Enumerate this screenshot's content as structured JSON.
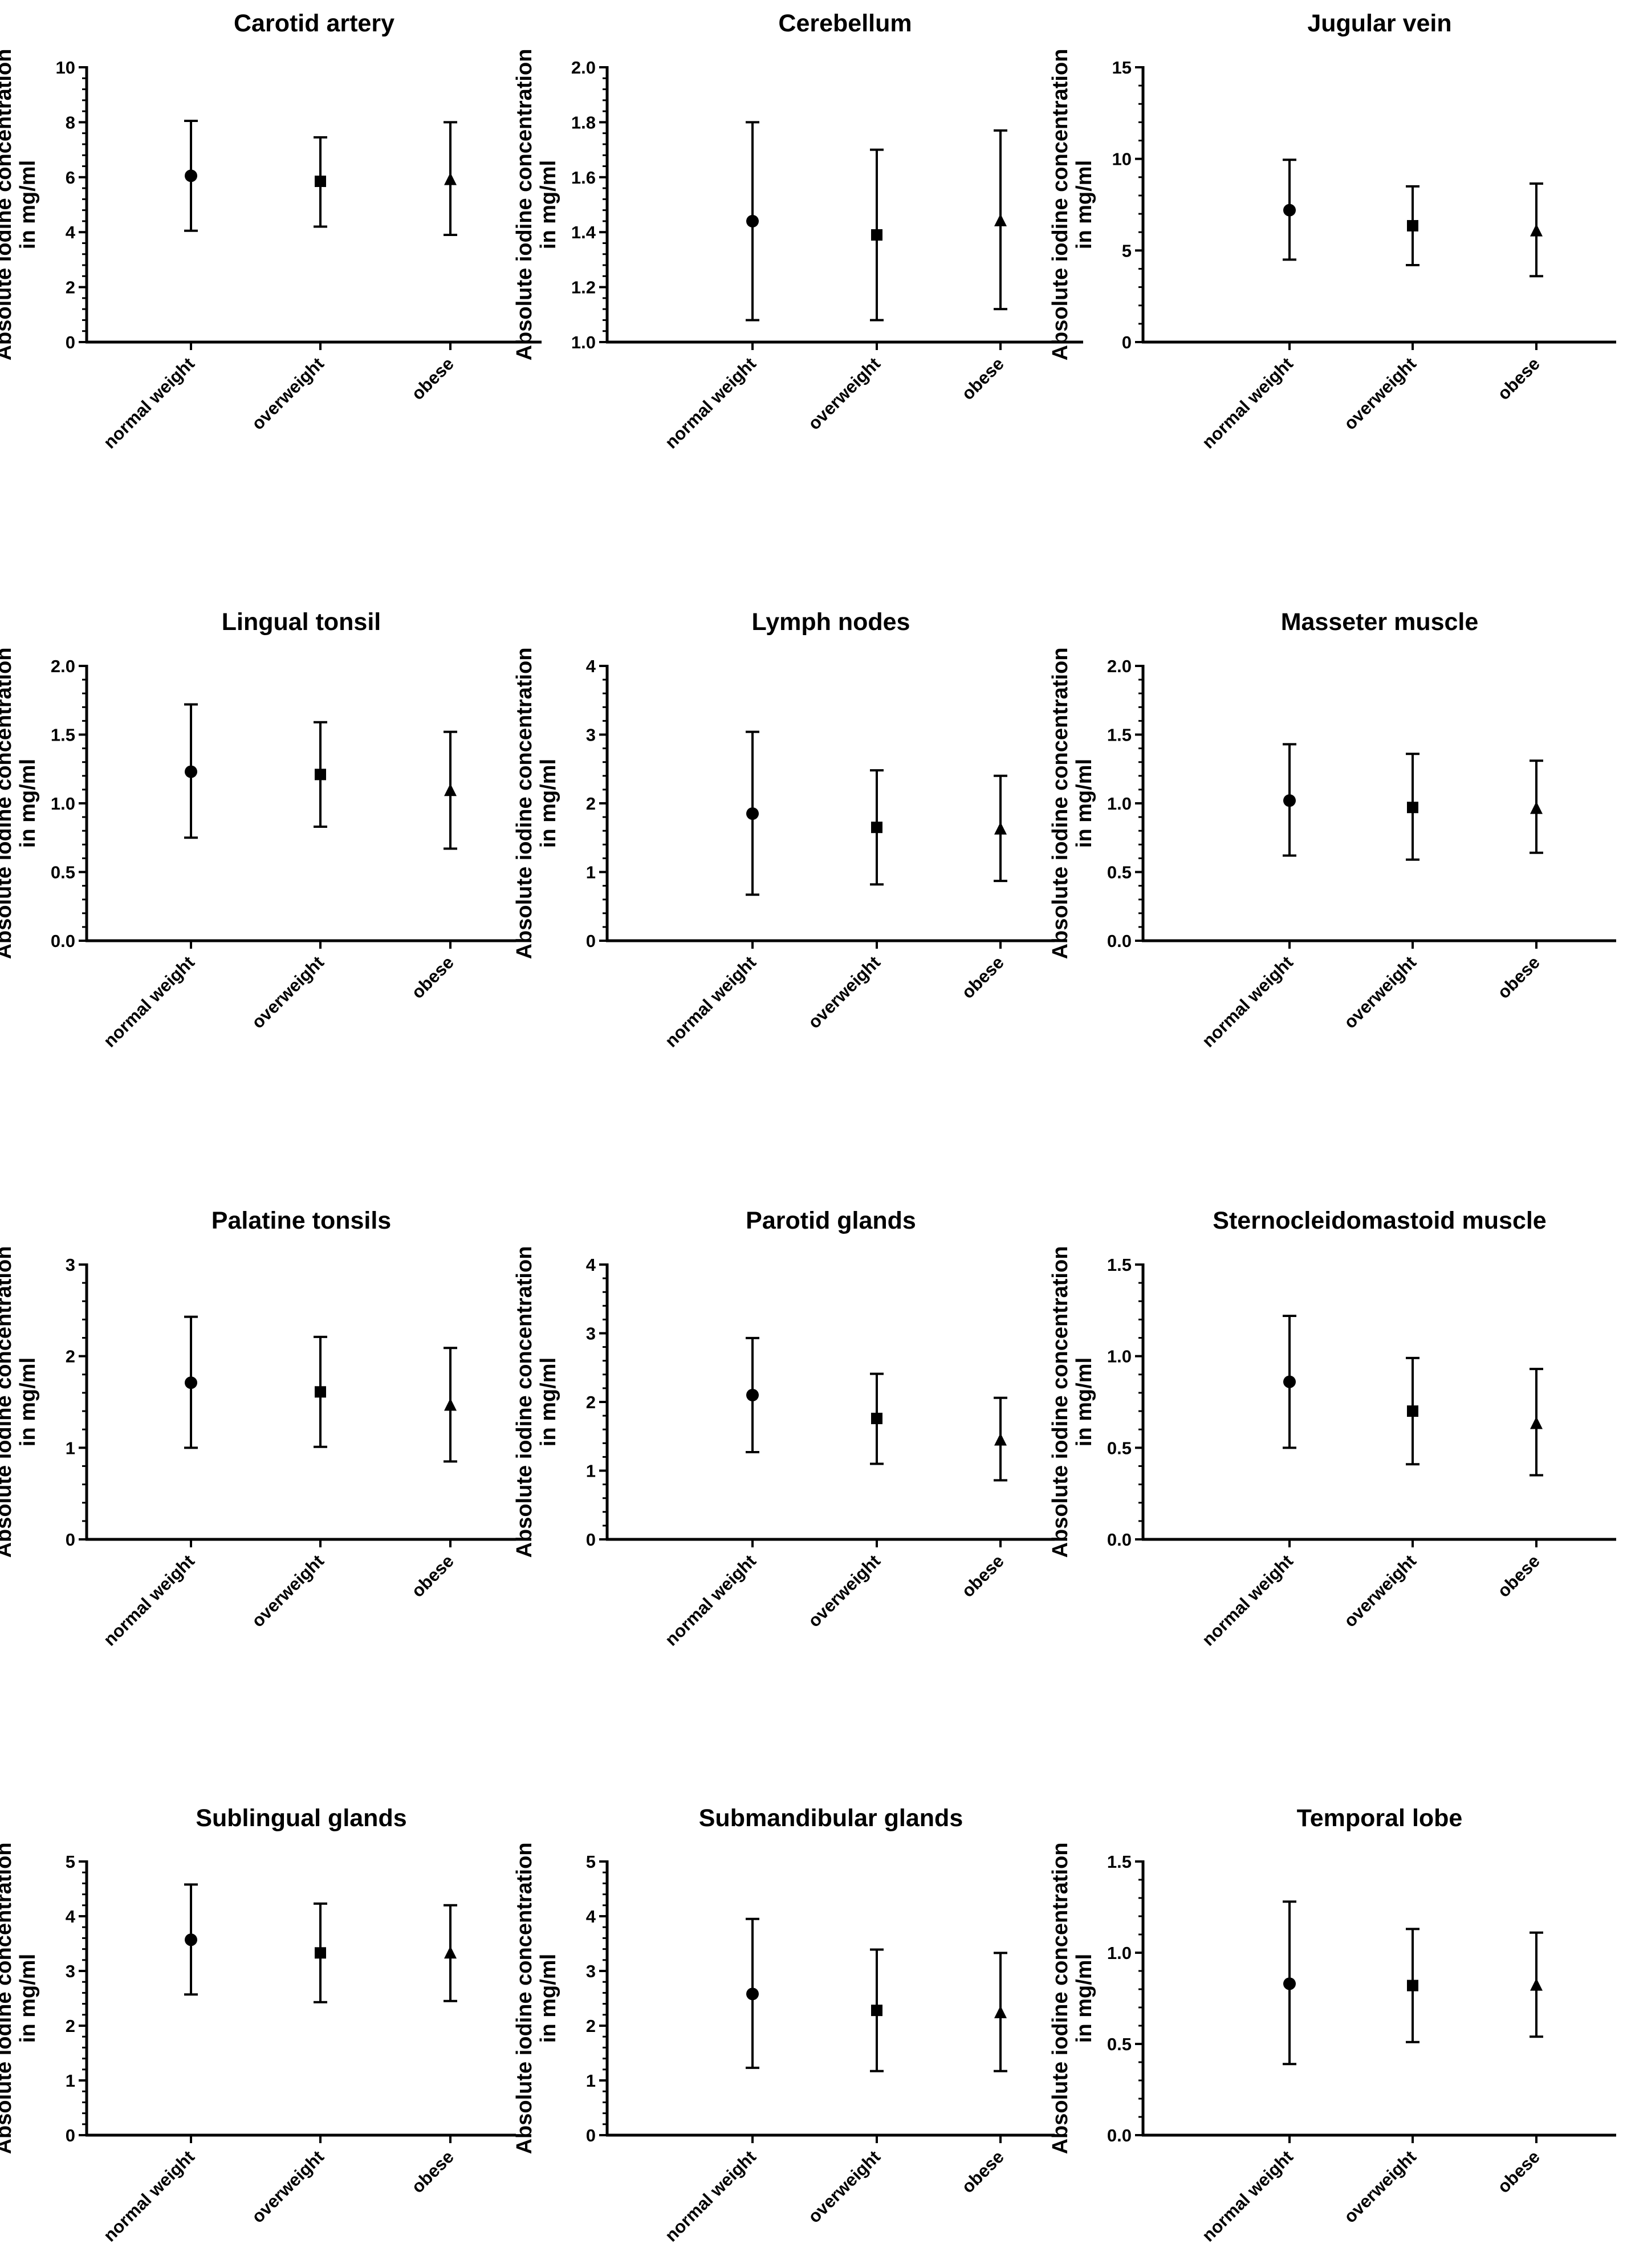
{
  "figure": {
    "ylabel_line1": "Absolute iodine concentration",
    "ylabel_line2": "in mg/ml",
    "categories": [
      "normal weight",
      "overweight",
      "obese"
    ],
    "marker_shapes": [
      "circle",
      "square",
      "triangle"
    ],
    "line_color": "#000000"
  },
  "chart_data": [
    {
      "type": "scatter",
      "title": "Carotid artery",
      "categories": [
        "normal weight",
        "overweight",
        "obese"
      ],
      "means": [
        6.05,
        5.85,
        5.9
      ],
      "lower": [
        4.05,
        4.2,
        3.9
      ],
      "upper": [
        8.05,
        7.45,
        8.0
      ],
      "ylim": [
        0,
        10
      ],
      "ticks": [
        0,
        2,
        4,
        6,
        8,
        10
      ],
      "tick_labels": [
        "0",
        "2",
        "4",
        "6",
        "8",
        "10"
      ],
      "ylabel": "Absolute iodine concentration in mg/ml"
    },
    {
      "type": "scatter",
      "title": "Cerebellum",
      "categories": [
        "normal weight",
        "overweight",
        "obese"
      ],
      "means": [
        1.44,
        1.39,
        1.44
      ],
      "lower": [
        1.08,
        1.08,
        1.12
      ],
      "upper": [
        1.8,
        1.7,
        1.77
      ],
      "ylim": [
        1.0,
        2.0
      ],
      "ticks": [
        1.0,
        1.2,
        1.4,
        1.6,
        1.8,
        2.0
      ],
      "tick_labels": [
        "1.0",
        "1.2",
        "1.4",
        "1.6",
        "1.8",
        "2.0"
      ],
      "ylabel": "Absolute iodine concentration in mg/ml"
    },
    {
      "type": "scatter",
      "title": "Jugular vein",
      "categories": [
        "normal weight",
        "overweight",
        "obese"
      ],
      "means": [
        7.2,
        6.35,
        6.05
      ],
      "lower": [
        4.5,
        4.2,
        3.6
      ],
      "upper": [
        9.95,
        8.5,
        8.65
      ],
      "ylim": [
        0,
        15
      ],
      "ticks": [
        0,
        5,
        10,
        15
      ],
      "tick_labels": [
        "0",
        "5",
        "10",
        "15"
      ],
      "ylabel": "Absolute iodine concentration in mg/ml"
    },
    {
      "type": "scatter",
      "title": "Lingual tonsil",
      "categories": [
        "normal weight",
        "overweight",
        "obese"
      ],
      "means": [
        1.23,
        1.21,
        1.09
      ],
      "lower": [
        0.75,
        0.83,
        0.67
      ],
      "upper": [
        1.72,
        1.59,
        1.52
      ],
      "ylim": [
        0,
        2.0
      ],
      "ticks": [
        0,
        0.5,
        1.0,
        1.5,
        2.0
      ],
      "tick_labels": [
        "0.0",
        "0.5",
        "1.0",
        "1.5",
        "2.0"
      ],
      "ylabel": "Absolute iodine concentration in mg/ml"
    },
    {
      "type": "scatter",
      "title": "Lymph nodes",
      "categories": [
        "normal weight",
        "overweight",
        "obese"
      ],
      "means": [
        1.85,
        1.65,
        1.62
      ],
      "lower": [
        0.67,
        0.82,
        0.87
      ],
      "upper": [
        3.04,
        2.48,
        2.4
      ],
      "ylim": [
        0,
        4
      ],
      "ticks": [
        0,
        1,
        2,
        3,
        4
      ],
      "tick_labels": [
        "0",
        "1",
        "2",
        "3",
        "4"
      ],
      "ylabel": "Absolute iodine concentration in mg/ml"
    },
    {
      "type": "scatter",
      "title": "Masseter muscle",
      "categories": [
        "normal weight",
        "overweight",
        "obese"
      ],
      "means": [
        1.02,
        0.97,
        0.96
      ],
      "lower": [
        0.62,
        0.59,
        0.64
      ],
      "upper": [
        1.43,
        1.36,
        1.31
      ],
      "ylim": [
        0,
        2.0
      ],
      "ticks": [
        0,
        0.5,
        1.0,
        1.5,
        2.0
      ],
      "tick_labels": [
        "0.0",
        "0.5",
        "1.0",
        "1.5",
        "2.0"
      ],
      "ylabel": "Absolute iodine concentration in mg/ml"
    },
    {
      "type": "scatter",
      "title": "Palatine tonsils",
      "categories": [
        "normal weight",
        "overweight",
        "obese"
      ],
      "means": [
        1.71,
        1.61,
        1.46
      ],
      "lower": [
        1.0,
        1.01,
        0.85
      ],
      "upper": [
        2.43,
        2.21,
        2.09
      ],
      "ylim": [
        0,
        3
      ],
      "ticks": [
        0,
        1,
        2,
        3
      ],
      "tick_labels": [
        "0",
        "1",
        "2",
        "3"
      ],
      "ylabel": "Absolute iodine concentration in mg/ml"
    },
    {
      "type": "scatter",
      "title": "Parotid glands",
      "categories": [
        "normal weight",
        "overweight",
        "obese"
      ],
      "means": [
        2.1,
        1.76,
        1.44
      ],
      "lower": [
        1.27,
        1.1,
        0.86
      ],
      "upper": [
        2.93,
        2.41,
        2.06
      ],
      "ylim": [
        0,
        4
      ],
      "ticks": [
        0,
        1,
        2,
        3,
        4
      ],
      "tick_labels": [
        "0",
        "1",
        "2",
        "3",
        "4"
      ],
      "ylabel": "Absolute iodine concentration in mg/ml"
    },
    {
      "type": "scatter",
      "title": "Sternocleidomastoid muscle",
      "categories": [
        "normal weight",
        "overweight",
        "obese"
      ],
      "means": [
        0.86,
        0.7,
        0.63
      ],
      "lower": [
        0.5,
        0.41,
        0.35
      ],
      "upper": [
        1.22,
        0.99,
        0.93
      ],
      "ylim": [
        0,
        1.5
      ],
      "ticks": [
        0,
        0.5,
        1.0,
        1.5
      ],
      "tick_labels": [
        "0.0",
        "0.5",
        "1.0",
        "1.5"
      ],
      "ylabel": "Absolute iodine concentration in mg/ml"
    },
    {
      "type": "scatter",
      "title": "Sublingual glands",
      "categories": [
        "normal weight",
        "overweight",
        "obese"
      ],
      "means": [
        3.57,
        3.33,
        3.32
      ],
      "lower": [
        2.57,
        2.43,
        2.45
      ],
      "upper": [
        4.58,
        4.23,
        4.2
      ],
      "ylim": [
        0,
        5
      ],
      "ticks": [
        0,
        1,
        2,
        3,
        4,
        5
      ],
      "tick_labels": [
        "0",
        "1",
        "2",
        "3",
        "4",
        "5"
      ],
      "ylabel": "Absolute iodine concentration in mg/ml"
    },
    {
      "type": "scatter",
      "title": "Submandibular glands",
      "categories": [
        "normal weight",
        "overweight",
        "obese"
      ],
      "means": [
        2.58,
        2.28,
        2.23
      ],
      "lower": [
        1.23,
        1.17,
        1.17
      ],
      "upper": [
        3.95,
        3.39,
        3.33
      ],
      "ylim": [
        0,
        5
      ],
      "ticks": [
        0,
        1,
        2,
        3,
        4,
        5
      ],
      "tick_labels": [
        "0",
        "1",
        "2",
        "3",
        "4",
        "5"
      ],
      "ylabel": "Absolute iodine concentration in mg/ml"
    },
    {
      "type": "scatter",
      "title": "Temporal lobe",
      "categories": [
        "normal weight",
        "overweight",
        "obese"
      ],
      "means": [
        0.83,
        0.82,
        0.82
      ],
      "lower": [
        0.39,
        0.51,
        0.54
      ],
      "upper": [
        1.28,
        1.13,
        1.11
      ],
      "ylim": [
        0,
        1.5
      ],
      "ticks": [
        0,
        0.5,
        1.0,
        1.5
      ],
      "tick_labels": [
        "0.0",
        "0.5",
        "1.0",
        "1.5"
      ],
      "ylabel": "Absolute iodine concentration in mg/ml"
    }
  ]
}
